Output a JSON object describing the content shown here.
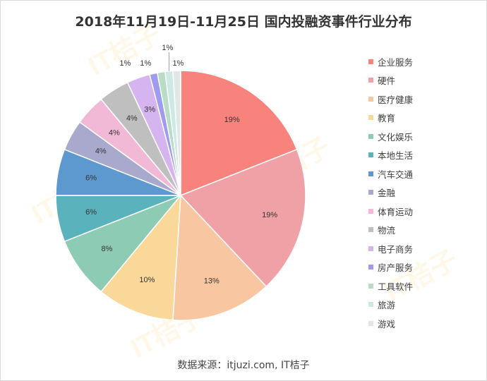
{
  "title": "2018年11月19日-11月25日 国内投融资事件行业分布",
  "source": "数据来源：itjuzi.com, IT桔子",
  "watermark": "IT桔子",
  "chart_data": {
    "type": "pie",
    "title": "2018年11月19日-11月25日 国内投融资事件行业分布",
    "legend_position": "right",
    "start_angle": "12 o'clock, clockwise",
    "slices": [
      {
        "label": "企业服务",
        "value": 19,
        "display": "19%",
        "color": "#f8837c"
      },
      {
        "label": "硬件",
        "value": 19,
        "display": "19%",
        "color": "#f0a1a5"
      },
      {
        "label": "医疗健康",
        "value": 13,
        "display": "13%",
        "color": "#f8c7a2"
      },
      {
        "label": "教育",
        "value": 10,
        "display": "10%",
        "color": "#fad89a"
      },
      {
        "label": "文化娱乐",
        "value": 8,
        "display": "8%",
        "color": "#8ecbb4"
      },
      {
        "label": "本地生活",
        "value": 6,
        "display": "6%",
        "color": "#59b2bc"
      },
      {
        "label": "汽车交通",
        "value": 6,
        "display": "6%",
        "color": "#5d99cf"
      },
      {
        "label": "金融",
        "value": 4,
        "display": "4%",
        "color": "#a9a9cd"
      },
      {
        "label": "体育运动",
        "value": 4,
        "display": "4%",
        "color": "#f2b9d6"
      },
      {
        "label": "物流",
        "value": 4,
        "display": "4%",
        "color": "#bfbfbf"
      },
      {
        "label": "电子商务",
        "value": 3,
        "display": "3%",
        "color": "#d6b4f0"
      },
      {
        "label": "房产服务",
        "value": 1,
        "display": "1%",
        "color": "#9f9cf0"
      },
      {
        "label": "工具软件",
        "value": 1,
        "display": "1%",
        "color": "#b8dcc6"
      },
      {
        "label": "旅游",
        "value": 1,
        "display": "1%",
        "color": "#cde9e6"
      },
      {
        "label": "游戏",
        "value": 1,
        "display": "1%",
        "color": "#e0e8e6"
      }
    ]
  }
}
